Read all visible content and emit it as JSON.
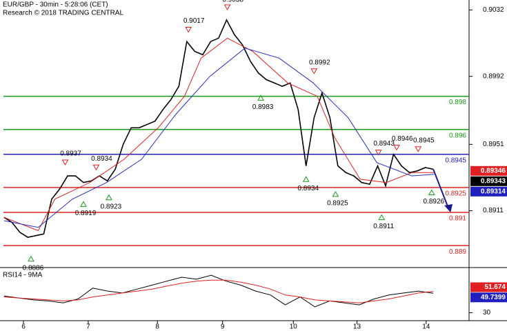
{
  "chart_data": {
    "type": "line",
    "title": "EUR/GBP - 30min - 5:28:06 (CET)",
    "subtitle": "Research © 2018 TRADING CENTRAL",
    "xlim": [
      -0.5,
      58.5
    ],
    "xticks": [
      {
        "value": 2.45,
        "label": "6"
      },
      {
        "value": 10.6,
        "label": "7"
      },
      {
        "value": 19.3,
        "label": "8"
      },
      {
        "value": 27.5,
        "label": "9"
      },
      {
        "value": 36.4,
        "label": "10"
      },
      {
        "value": 44.4,
        "label": "13"
      },
      {
        "value": 53.1,
        "label": "14"
      }
    ],
    "ylim": [
      0.8878,
      0.9038
    ],
    "yticks": [
      0.9032,
      0.8992,
      0.8951,
      0.8911
    ],
    "series": [
      {
        "color": "#000000",
        "values": [
          0.8907,
          0.8904,
          0.8898,
          0.8895,
          0.8896,
          0.8897,
          0.8918,
          0.8924,
          0.8932,
          0.8932,
          0.8928,
          0.8929,
          0.8932,
          0.8929,
          0.8936,
          0.8951,
          0.8961,
          0.8961,
          0.8963,
          0.8965,
          0.8972,
          0.8978,
          0.8986,
          0.9013,
          0.9007,
          0.9005,
          0.9013,
          0.9015,
          0.9026,
          0.9017,
          0.9011,
          0.9001,
          0.8994,
          0.899,
          0.8988,
          0.8986,
          0.8988,
          0.8972,
          0.8938,
          0.8967,
          0.8982,
          0.8967,
          0.8938,
          0.8934,
          0.8932,
          0.8928,
          0.8927,
          0.8938,
          0.8926,
          0.8945,
          0.8938,
          0.8934,
          0.8935,
          0.8937,
          0.8936
        ]
      },
      {
        "color": "#e02020",
        "x": [
          0,
          4.3,
          6.4,
          10.8,
          15.1,
          19.4,
          22.7,
          24.8,
          28.1,
          31.3,
          35.7,
          39.4,
          41.6,
          44.8,
          48.1,
          51.3,
          54.1
        ],
        "values": [
          0.8907,
          0.8899,
          0.8918,
          0.8928,
          0.8942,
          0.8961,
          0.898,
          0.9003,
          0.9015,
          0.9007,
          0.8988,
          0.898,
          0.8955,
          0.893,
          0.8928,
          0.8934,
          0.8934
        ]
      },
      {
        "color": "#2030c0",
        "x": [
          0,
          4.3,
          8.6,
          12.9,
          17.3,
          21.6,
          25.9,
          30.3,
          34.6,
          38.9,
          43.3,
          46.9,
          51.3,
          54.1
        ],
        "values": [
          0.8905,
          0.8901,
          0.8918,
          0.8928,
          0.8942,
          0.8969,
          0.8992,
          0.9009,
          0.9003,
          0.8988,
          0.8967,
          0.894,
          0.8932,
          0.8933
        ]
      }
    ],
    "levels": [
      {
        "value": 0.898,
        "color": "#1a9a1a"
      },
      {
        "value": 0.896,
        "color": "#1a9a1a"
      },
      {
        "value": 0.8945,
        "color": "#2020c0"
      },
      {
        "value": 0.8925,
        "color": "#e02020"
      },
      {
        "value": 0.891,
        "color": "#e02020"
      },
      {
        "value": 0.889,
        "color": "#e02020"
      }
    ],
    "annotations": [
      {
        "value": 0.8886,
        "x": 3.4,
        "kind": "low"
      },
      {
        "value": 0.8937,
        "x": 7.7,
        "kind": "high"
      },
      {
        "value": 0.8934,
        "x": 11.6,
        "kind": "high"
      },
      {
        "value": 0.8919,
        "x": 10,
        "kind": "low"
      },
      {
        "value": 0.8923,
        "x": 13.2,
        "kind": "low"
      },
      {
        "value": 0.9017,
        "x": 23.2,
        "kind": "high"
      },
      {
        "value": 0.9038,
        "x": 28.1,
        "kind": "high"
      },
      {
        "value": 0.8983,
        "x": 32.3,
        "kind": "low"
      },
      {
        "value": 0.8992,
        "x": 39,
        "kind": "high"
      },
      {
        "value": 0.8934,
        "x": 38,
        "kind": "low"
      },
      {
        "value": 0.8925,
        "x": 41.7,
        "kind": "low"
      },
      {
        "value": 0.8911,
        "x": 47.5,
        "kind": "low"
      },
      {
        "value": 0.8943,
        "x": 47.1,
        "kind": "high"
      },
      {
        "value": 0.8946,
        "x": 49.4,
        "kind": "high"
      },
      {
        "value": 0.8945,
        "x": 52.1,
        "kind": "high"
      },
      {
        "value": 0.8926,
        "x": 53.8,
        "kind": "low"
      }
    ],
    "price_boxes": [
      {
        "value": 0.89346,
        "color": "#e02020"
      },
      {
        "value": 0.89343,
        "color": "#000000"
      },
      {
        "value": 0.89314,
        "color": "#2020c0"
      }
    ],
    "rsi": {
      "title": "RSI14 - 9MA",
      "ylim": [
        22,
        73
      ],
      "yticks": [
        30
      ],
      "series": [
        {
          "color": "#000000",
          "values": [
            47,
            45,
            43,
            42,
            40,
            44,
            55,
            52,
            50,
            54,
            58,
            62,
            66,
            64,
            68,
            62,
            58,
            52,
            48,
            38,
            46,
            36,
            42,
            40,
            38,
            44,
            48,
            50,
            52,
            49.7399
          ]
        },
        {
          "color": "#e02020",
          "values": [
            46,
            45,
            44,
            43,
            42,
            43,
            46,
            48,
            50,
            52,
            54,
            57,
            60,
            62,
            63,
            63,
            61,
            58,
            54,
            48,
            46,
            43,
            42,
            41,
            40,
            42,
            44,
            47,
            50,
            51.674
          ]
        }
      ],
      "boxes": [
        {
          "value": 51.674,
          "color": "#e02020"
        },
        {
          "value": 49.7399,
          "color": "#2020c0"
        }
      ]
    }
  }
}
